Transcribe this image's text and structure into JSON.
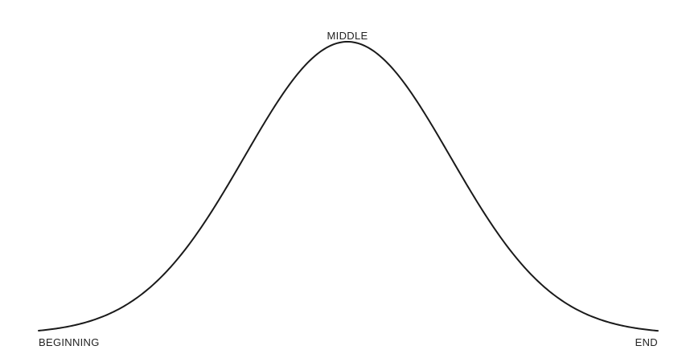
{
  "diagram": {
    "labels": {
      "peak": "MIDDLE",
      "start": "BEGINNING",
      "end": "END"
    },
    "colors": {
      "stroke": "#1a1a1a",
      "text": "#222222",
      "background": "#ffffff"
    }
  }
}
